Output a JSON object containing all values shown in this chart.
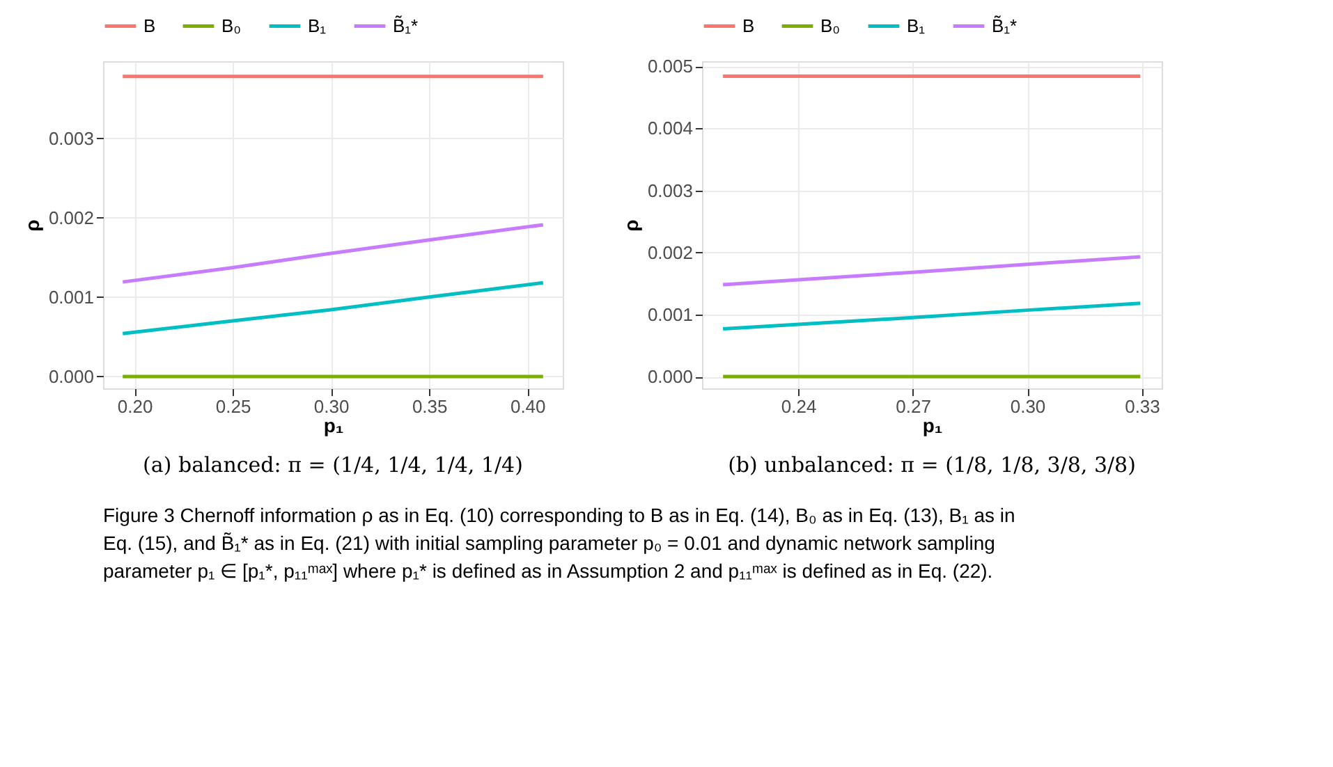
{
  "chart_data": [
    {
      "type": "line",
      "title": "(a) balanced: π = (1/4, 1/4, 1/4, 1/4)",
      "xlabel": "p₁",
      "ylabel": "ρ",
      "xlim": [
        0.184,
        0.418
      ],
      "ylim": [
        -0.00015,
        0.00397
      ],
      "xticks": [
        {
          "value": 0.2,
          "label": "0.20"
        },
        0.25,
        {
          "value": 0.3,
          "label": "0.30"
        },
        0.35,
        {
          "value": 0.4,
          "label": "0.40"
        }
      ],
      "yticks": [
        {
          "value": 0,
          "label": "0.000"
        },
        0.001,
        0.002,
        0.003
      ],
      "grid": true,
      "legend": "top",
      "series": [
        {
          "name": "B",
          "color": "#f8766d",
          "x": [
            0.194,
            0.408
          ],
          "values": [
            0.00378,
            0.00378
          ]
        },
        {
          "name": "B₀",
          "color": "#7cae00",
          "x": [
            0.194,
            0.408
          ],
          "values": [
            0,
            0
          ]
        },
        {
          "name": "B₁",
          "color": "#00bfc4",
          "x": [
            0.194,
            0.25,
            0.3,
            0.35,
            0.408
          ],
          "values": [
            0.00054,
            0.0007,
            0.00084,
            0.001,
            0.00118
          ]
        },
        {
          "name": "B̃₁*",
          "color": "#c77cff",
          "x": [
            0.194,
            0.25,
            0.3,
            0.35,
            0.408
          ],
          "values": [
            0.00119,
            0.00137,
            0.00155,
            0.00172,
            0.00191
          ]
        }
      ],
      "annotations": [
        "Figure 3 Chernoff information ρ as in Eq. (10) corresponding to B as in Eq. (14), B₀ as in Eq. (13), B₁ as in Eq. (15), and B̃₁* as in Eq. (21) with initial sampling parameter p₀ = 0.01 and dynamic network sampling parameter p₁ ∈ [p₁*, p₁₁ᵐᵃˣ] where p₁* is defined as in Assumption 2 and p₁₁ᵐᵃˣ is defined as in Eq. (22)."
      ]
    },
    {
      "type": "line",
      "title": "(b) unbalanced: π = (1/8, 1/8, 3/8, 3/8)",
      "xlabel": "p₁",
      "ylabel": "ρ",
      "xlim": [
        0.2148,
        0.3352
      ],
      "ylim": [
        -0.00019,
        0.00508
      ],
      "xticks": [
        0.24,
        0.27,
        {
          "value": 0.3,
          "label": "0.30"
        },
        0.33
      ],
      "yticks": [
        {
          "value": 0,
          "label": "0.000"
        },
        0.001,
        0.002,
        0.003,
        0.004,
        0.005
      ],
      "grid": true,
      "legend": "top",
      "series": [
        {
          "name": "B",
          "color": "#f8766d",
          "x": [
            0.2203,
            0.3296
          ],
          "values": [
            0.00484,
            0.00484
          ]
        },
        {
          "name": "B₀",
          "color": "#7cae00",
          "x": [
            0.2203,
            0.3296
          ],
          "values": [
            0,
            0
          ]
        },
        {
          "name": "B₁",
          "color": "#00bfc4",
          "x": [
            0.2203,
            0.27,
            0.3,
            0.3296
          ],
          "values": [
            0.00077,
            0.00095,
            0.00107,
            0.00118
          ]
        },
        {
          "name": "B̃₁*",
          "color": "#c77cff",
          "x": [
            0.2203,
            0.24,
            0.27,
            0.3,
            0.3296
          ],
          "values": [
            0.00148,
            0.00156,
            0.00168,
            0.00181,
            0.00193
          ]
        }
      ]
    }
  ]
}
